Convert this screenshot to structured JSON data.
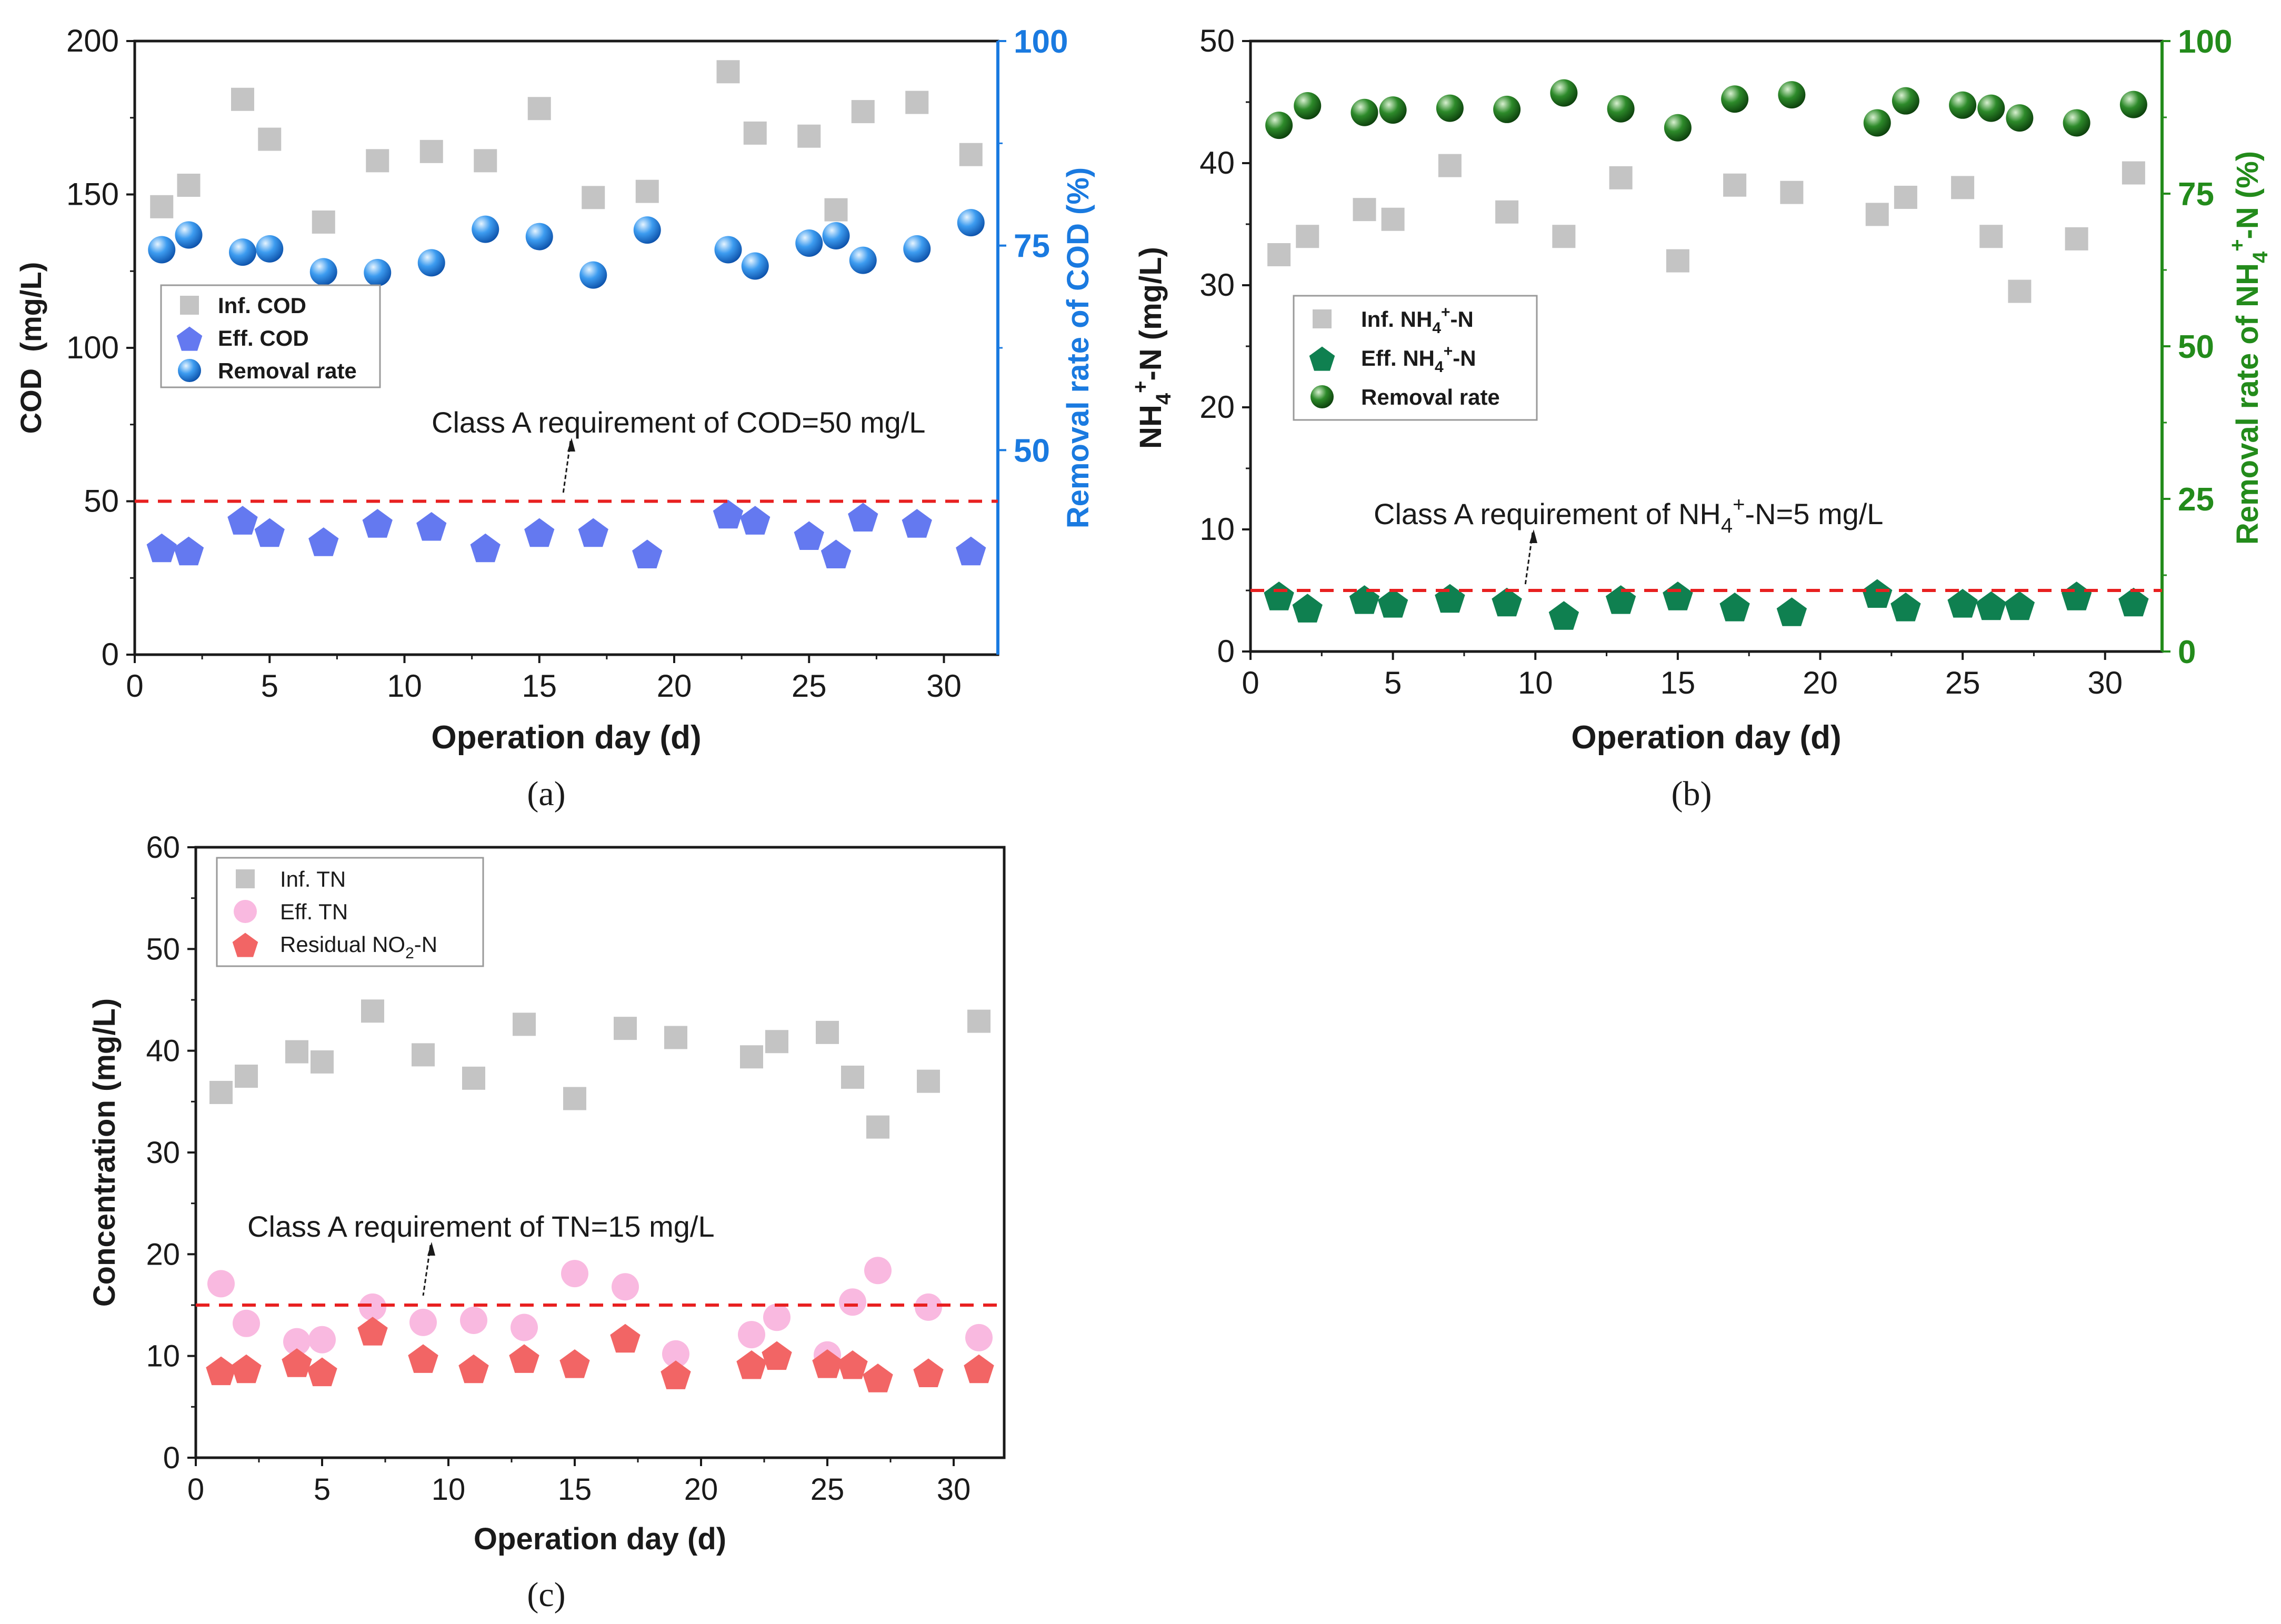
{
  "colors": {
    "inf": "#c4c4c4",
    "cod_eff": "#6479f0",
    "cod_rr": "#1a86e0",
    "cod_right_axis": "#1a7ae0",
    "nh4_eff": "#0f8050",
    "nh4_rr": "#1e6b1e",
    "nh4_right_axis": "#238b1b",
    "tn_eff": "#f9b9e0",
    "tn_no2": "#f26565",
    "limit_line": "#e82020",
    "axis": "#1a1a1a"
  },
  "chart_data": [
    {
      "id": "a",
      "type": "scatter",
      "panel_label": "(a)",
      "xlabel": "Operation day (d)",
      "ylabel": "COD  (mg/L)",
      "y2label": "Removal rate of COD (%)",
      "xlim": [
        0,
        32
      ],
      "ylim": [
        0,
        200
      ],
      "y2lim": [
        25,
        100
      ],
      "xticks": [
        0,
        5,
        10,
        15,
        20,
        25,
        30
      ],
      "yticks": [
        0,
        50,
        100,
        150,
        200
      ],
      "y2ticks": [
        50,
        75,
        100
      ],
      "limit": {
        "value": 50,
        "label": "Class A requirement of COD=50 mg/L"
      },
      "series": [
        {
          "name": "Inf. COD",
          "marker": "square",
          "axis": "left",
          "color_key": "inf",
          "x": [
            1,
            2,
            4,
            5,
            7,
            9,
            11,
            13,
            15,
            17,
            19,
            22,
            23,
            25,
            26,
            27,
            29,
            31
          ],
          "y": [
            146,
            153,
            181,
            168,
            141,
            161,
            164,
            161,
            178,
            149,
            151,
            190,
            170,
            169,
            145,
            177,
            180,
            163
          ]
        },
        {
          "name": "Eff. COD",
          "marker": "pentagon",
          "axis": "left",
          "color_key": "cod_eff",
          "x": [
            1,
            2,
            4,
            5,
            7,
            9,
            11,
            13,
            15,
            17,
            19,
            22,
            23,
            25,
            26,
            27,
            29,
            31
          ],
          "y": [
            35,
            34,
            44,
            40,
            37,
            43,
            42,
            35,
            40,
            40,
            33,
            46,
            44,
            39,
            33,
            45,
            43,
            34
          ]
        },
        {
          "name": "Removal rate",
          "marker": "sphere",
          "axis": "right",
          "color_key": "cod_rr",
          "x": [
            1,
            2,
            4,
            5,
            7,
            9,
            11,
            13,
            15,
            17,
            19,
            22,
            23,
            25,
            26,
            27,
            29,
            31
          ],
          "y": [
            74.5,
            76.3,
            74.2,
            74.6,
            71.8,
            71.7,
            72.9,
            77.0,
            76.1,
            71.4,
            76.9,
            74.5,
            72.5,
            75.3,
            76.2,
            73.2,
            74.6,
            77.8
          ]
        }
      ]
    },
    {
      "id": "b",
      "type": "scatter",
      "panel_label": "(b)",
      "xlabel": "Operation day (d)",
      "ylabel": "NH4+-N (mg/L)",
      "y2label": "Removal rate of NH4+-N (%)",
      "xlim": [
        0,
        32
      ],
      "ylim": [
        0,
        50
      ],
      "y2lim": [
        0,
        100
      ],
      "xticks": [
        0,
        5,
        10,
        15,
        20,
        25,
        30
      ],
      "yticks": [
        0,
        10,
        20,
        30,
        40,
        50
      ],
      "y2ticks": [
        0,
        25,
        50,
        75,
        100
      ],
      "limit": {
        "value": 5,
        "label": "Class A requirement of NH4+-N=5 mg/L"
      },
      "series": [
        {
          "name": "Inf. NH4+-N",
          "marker": "square",
          "axis": "left",
          "color_key": "inf",
          "x": [
            1,
            2,
            4,
            5,
            7,
            9,
            11,
            13,
            15,
            17,
            19,
            22,
            23,
            25,
            26,
            27,
            29,
            31
          ],
          "y": [
            32.5,
            34,
            36.2,
            35.4,
            39.8,
            36,
            34,
            38.8,
            32,
            38.2,
            37.6,
            35.8,
            37.2,
            38,
            34,
            29.5,
            33.8,
            39.2
          ]
        },
        {
          "name": "Eff. NH4+-N",
          "marker": "pentagon",
          "axis": "left",
          "color_key": "nh4_eff",
          "x": [
            1,
            2,
            4,
            5,
            7,
            9,
            11,
            13,
            15,
            17,
            19,
            22,
            23,
            25,
            26,
            27,
            29,
            31
          ],
          "y": [
            4.6,
            3.6,
            4.3,
            4.0,
            4.4,
            4.1,
            3.0,
            4.3,
            4.6,
            3.7,
            3.3,
            4.8,
            3.7,
            4.0,
            3.8,
            3.8,
            4.6,
            4.1
          ]
        },
        {
          "name": "Removal rate",
          "marker": "sphere",
          "axis": "right",
          "color_key": "nh4_rr",
          "x": [
            1,
            2,
            4,
            5,
            7,
            9,
            11,
            13,
            15,
            17,
            19,
            22,
            23,
            25,
            26,
            27,
            29,
            31
          ],
          "y": [
            86.2,
            89.4,
            88.3,
            88.7,
            89.0,
            88.8,
            91.5,
            88.9,
            85.8,
            90.5,
            91.2,
            86.6,
            90.2,
            89.5,
            89.0,
            87.4,
            86.6,
            89.6
          ]
        }
      ]
    },
    {
      "id": "c",
      "type": "scatter",
      "panel_label": "(c)",
      "xlabel": "Operation day (d)",
      "ylabel": "Concentration (mg/L)",
      "xlim": [
        0,
        32
      ],
      "ylim": [
        0,
        60
      ],
      "xticks": [
        0,
        5,
        10,
        15,
        20,
        25,
        30
      ],
      "yticks": [
        0,
        10,
        20,
        30,
        40,
        50,
        60
      ],
      "limit": {
        "value": 15,
        "label": "Class A requirement of TN=15 mg/L"
      },
      "series": [
        {
          "name": "Inf. TN",
          "marker": "square",
          "axis": "left",
          "color_key": "inf",
          "x": [
            1,
            2,
            4,
            5,
            7,
            9,
            11,
            13,
            15,
            17,
            19,
            22,
            23,
            25,
            26,
            27,
            29,
            31
          ],
          "y": [
            35.9,
            37.5,
            39.9,
            38.9,
            43.9,
            39.6,
            37.3,
            42.6,
            35.3,
            42.2,
            41.3,
            39.4,
            40.9,
            41.8,
            37.4,
            32.5,
            37.0,
            42.9
          ]
        },
        {
          "name": "Eff. TN",
          "marker": "circle",
          "axis": "left",
          "color_key": "tn_eff",
          "x": [
            1,
            2,
            4,
            5,
            7,
            9,
            11,
            13,
            15,
            17,
            19,
            22,
            23,
            25,
            26,
            27,
            29,
            31
          ],
          "y": [
            17.1,
            13.2,
            11.4,
            11.6,
            14.8,
            13.3,
            13.5,
            12.8,
            18.1,
            16.8,
            10.2,
            12.1,
            13.8,
            10.1,
            15.3,
            18.4,
            14.8,
            11.8
          ]
        },
        {
          "name": "Residual NO2-N",
          "marker": "pentagon",
          "axis": "left",
          "color_key": "tn_no2",
          "x": [
            1,
            2,
            4,
            5,
            7,
            9,
            11,
            13,
            15,
            17,
            19,
            22,
            23,
            25,
            26,
            27,
            29,
            31
          ],
          "y": [
            8.6,
            8.8,
            9.4,
            8.5,
            12.5,
            9.8,
            8.8,
            9.8,
            9.3,
            11.8,
            8.2,
            9.2,
            10.1,
            9.3,
            9.2,
            7.9,
            8.4,
            8.8
          ]
        }
      ]
    }
  ]
}
